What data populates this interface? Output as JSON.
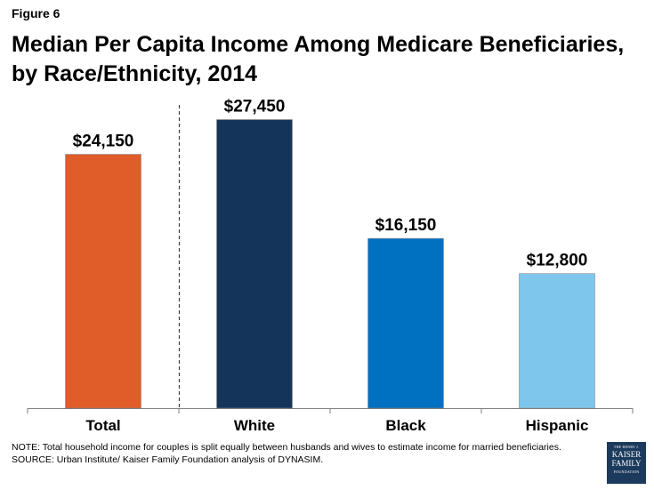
{
  "figure_label": "Figure 6",
  "chart_data": {
    "type": "bar",
    "title": "Median Per Capita Income Among Medicare Beneficiaries, by Race/Ethnicity, 2014",
    "categories": [
      "Total",
      "White",
      "Black",
      "Hispanic"
    ],
    "values": [
      24150,
      27450,
      16150,
      12800
    ],
    "data_labels": [
      "$24,150",
      "$27,450",
      "$16,150",
      "$12,800"
    ],
    "colors": [
      "#e05c28",
      "#14345a",
      "#0070c0",
      "#7ec6ec"
    ],
    "xlabel": "",
    "ylabel": "",
    "ylim": [
      0,
      28000
    ],
    "grid": false,
    "separator_after_category": "Total"
  },
  "notes": {
    "note": "NOTE: Total  household income for couples is split equally between husbands and wives to estimate income for married beneficiaries.",
    "source": "SOURCE: Urban Institute/ Kaiser Family Foundation analysis of DYNASIM."
  },
  "logo": {
    "line1": "THE HENRY J.",
    "line2": "KAISER",
    "line3": "FAMILY",
    "line4": "FOUNDATION"
  }
}
